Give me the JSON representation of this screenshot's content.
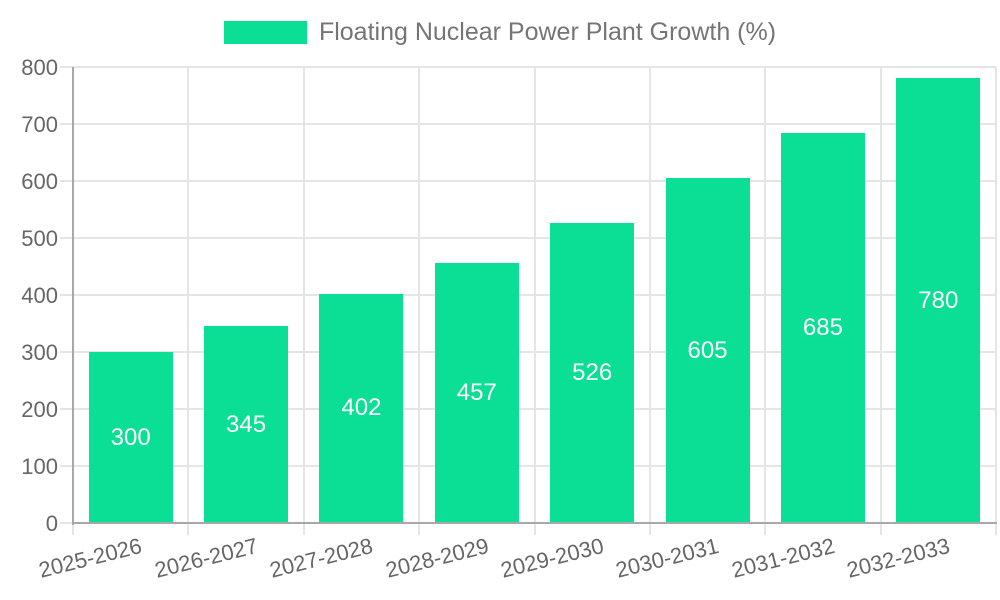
{
  "chart_data": {
    "type": "bar",
    "title": "Floating Nuclear Power Plant Growth (%)",
    "categories": [
      "2025-2026",
      "2026-2027",
      "2027-2028",
      "2028-2029",
      "2029-2030",
      "2030-2031",
      "2031-2032",
      "2032-2033"
    ],
    "values": [
      300,
      345,
      402,
      457,
      526,
      605,
      685,
      780
    ],
    "xlabel": "",
    "ylabel": "",
    "ylim": [
      0,
      800
    ],
    "yticks": [
      0,
      100,
      200,
      300,
      400,
      500,
      600,
      700,
      800
    ],
    "grid": true,
    "legend_position": "top-center",
    "value_labels_position": "inside-middle",
    "colors": {
      "bar": "#0BDE95",
      "bar_value_label": "#ffffff",
      "grid_line": "#e5e5e5",
      "axis_line": "#a8a8a8",
      "tick_text": "#666666",
      "legend_text": "#757575",
      "background": "#ffffff"
    }
  }
}
